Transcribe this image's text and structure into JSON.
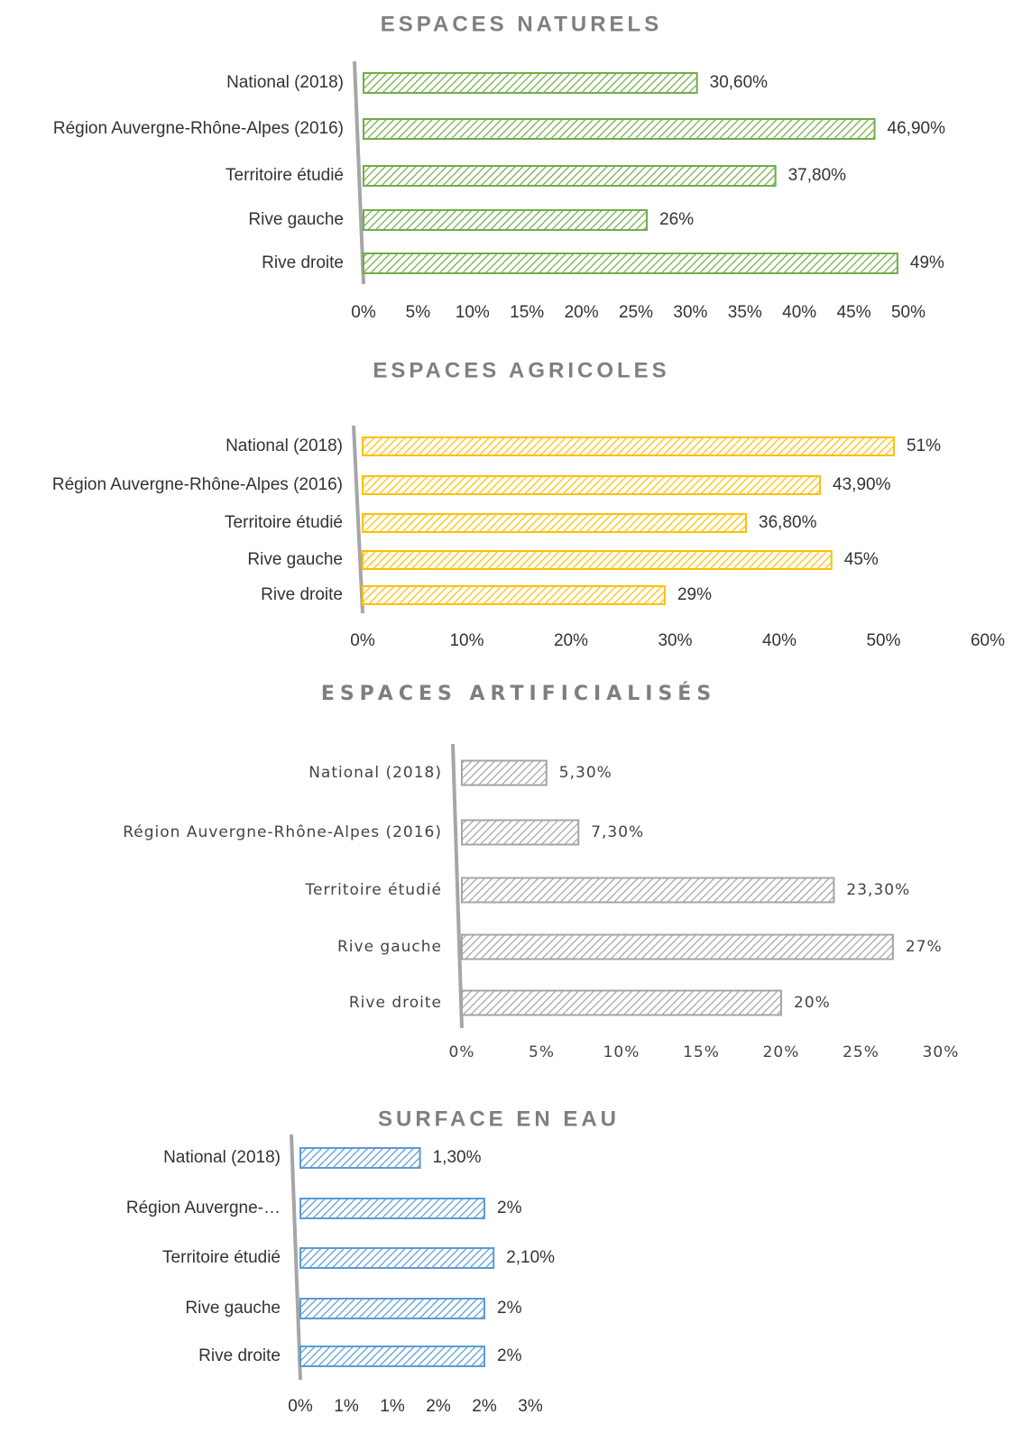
{
  "chart_data": [
    {
      "type": "bar",
      "orientation": "horizontal",
      "title": "ESPACES NATURELS",
      "color": "#70ad47",
      "categories": [
        "National (2018)",
        "Région Auvergne-Rhône-Alpes (2016)",
        "Territoire étudié",
        "Rive gauche",
        "Rive droite"
      ],
      "values": [
        30.6,
        46.9,
        37.8,
        26,
        49
      ],
      "value_labels": [
        "30,60%",
        "46,90%",
        "37,80%",
        "26%",
        "49%"
      ],
      "xlim": [
        0,
        50
      ],
      "xticks": [
        {
          "value": 0,
          "label": "0%"
        },
        {
          "value": 5,
          "label": "5%"
        },
        {
          "value": 10,
          "label": "10%"
        },
        {
          "value": 15,
          "label": "15%"
        },
        {
          "value": 20,
          "label": "20%"
        },
        {
          "value": 25,
          "label": "25%"
        },
        {
          "value": 30,
          "label": "30%"
        },
        {
          "value": 35,
          "label": "35%"
        },
        {
          "value": 40,
          "label": "40%"
        },
        {
          "value": 45,
          "label": "45%"
        },
        {
          "value": 50,
          "label": "50%"
        }
      ]
    },
    {
      "type": "bar",
      "orientation": "horizontal",
      "title": "ESPACES AGRICOLES",
      "color": "#ffc000",
      "categories": [
        "National (2018)",
        "Région Auvergne-Rhône-Alpes (2016)",
        "Territoire étudié",
        "Rive gauche",
        "Rive droite"
      ],
      "values": [
        51,
        43.9,
        36.8,
        45,
        29
      ],
      "value_labels": [
        "51%",
        "43,90%",
        "36,80%",
        "45%",
        "29%"
      ],
      "xlim": [
        0,
        60
      ],
      "xticks": [
        {
          "value": 0,
          "label": "0%"
        },
        {
          "value": 10,
          "label": "10%"
        },
        {
          "value": 20,
          "label": "20%"
        },
        {
          "value": 30,
          "label": "30%"
        },
        {
          "value": 40,
          "label": "40%"
        },
        {
          "value": 50,
          "label": "50%"
        },
        {
          "value": 60,
          "label": "60%"
        }
      ]
    },
    {
      "type": "bar",
      "orientation": "horizontal",
      "title": "ESPACES ARTIFICIALISÉS",
      "color": "#a5a5a5",
      "categories": [
        "National (2018)",
        "Région Auvergne-Rhône-Alpes (2016)",
        "Territoire étudié",
        "Rive gauche",
        "Rive droite"
      ],
      "values": [
        5.3,
        7.3,
        23.3,
        27,
        20
      ],
      "value_labels": [
        "5,30%",
        "7,30%",
        "23,30%",
        "27%",
        "20%"
      ],
      "xlim": [
        0,
        30
      ],
      "xticks": [
        {
          "value": 0,
          "label": "0%"
        },
        {
          "value": 5,
          "label": "5%"
        },
        {
          "value": 10,
          "label": "10%"
        },
        {
          "value": 15,
          "label": "15%"
        },
        {
          "value": 20,
          "label": "20%"
        },
        {
          "value": 25,
          "label": "25%"
        },
        {
          "value": 30,
          "label": "30%"
        }
      ]
    },
    {
      "type": "bar",
      "orientation": "horizontal",
      "title": "SURFACE EN EAU",
      "color": "#5b9bd5",
      "categories": [
        "National (2018)",
        "Région Auvergne-…",
        "Territoire étudié",
        "Rive gauche",
        "Rive droite"
      ],
      "values": [
        1.3,
        2,
        2.1,
        2,
        2
      ],
      "value_labels": [
        "1,30%",
        "2%",
        "2,10%",
        "2%",
        "2%"
      ],
      "xlim": [
        0,
        2.5
      ],
      "xticks": [
        {
          "value": 0,
          "label": "0%"
        },
        {
          "value": 0.5,
          "label": "1%"
        },
        {
          "value": 1,
          "label": "1%"
        },
        {
          "value": 1.5,
          "label": "2%"
        },
        {
          "value": 2,
          "label": "2%"
        },
        {
          "value": 2.5,
          "label": "3%"
        }
      ]
    }
  ]
}
